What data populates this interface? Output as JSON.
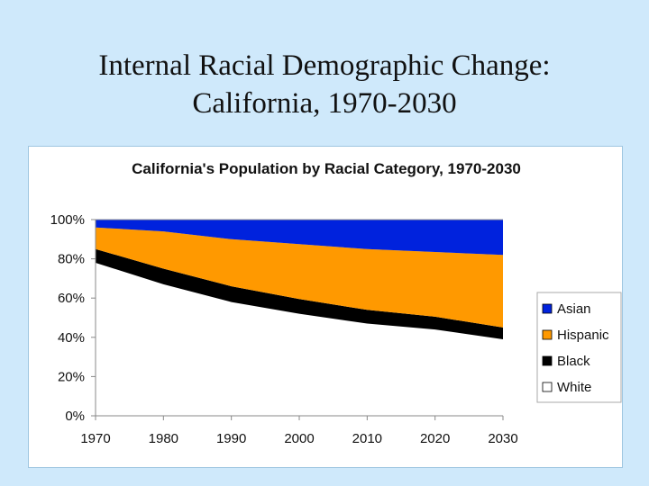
{
  "slide": {
    "title_line1": "Internal Racial Demographic Change:",
    "title_line2": "California, 1970-2030"
  },
  "chart_data": {
    "type": "area",
    "stacked": true,
    "percent": true,
    "title": "California's Population by Racial Category, 1970-2030",
    "xlabel": "",
    "ylabel": "",
    "x": [
      1970,
      1980,
      1990,
      2000,
      2010,
      2020,
      2030
    ],
    "x_tick_labels": [
      "1970",
      "1980",
      "1990",
      "2000",
      "2010",
      "2020",
      "2030"
    ],
    "ylim": [
      0,
      100
    ],
    "y_ticks": [
      0,
      20,
      40,
      60,
      80,
      100
    ],
    "y_tick_labels": [
      "0%",
      "20%",
      "40%",
      "60%",
      "80%",
      "100%"
    ],
    "series": [
      {
        "name": "White",
        "color": "#ffffff",
        "values": [
          78,
          67,
          58,
          52,
          47,
          44,
          39
        ]
      },
      {
        "name": "Black",
        "color": "#000000",
        "values": [
          7,
          8,
          8,
          7.5,
          7,
          6.5,
          6
        ]
      },
      {
        "name": "Hispanic",
        "color": "#ff9900",
        "values": [
          11,
          19,
          24,
          28,
          31,
          33,
          37
        ]
      },
      {
        "name": "Asian",
        "color": "#0022dd",
        "values": [
          4,
          6,
          10,
          12.5,
          15,
          16.5,
          18
        ]
      }
    ],
    "legend": [
      "Asian",
      "Hispanic",
      "Black",
      "White"
    ],
    "legend_position": "right",
    "grid": false
  }
}
